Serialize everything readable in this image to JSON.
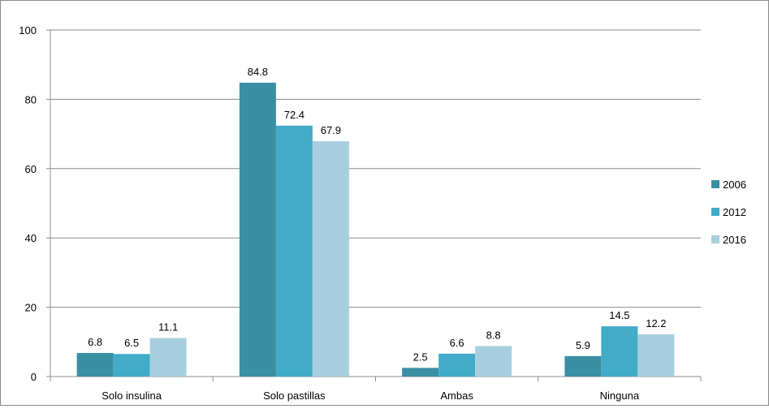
{
  "chart_data": {
    "type": "bar",
    "title": "",
    "xlabel": "",
    "ylabel": "",
    "ylim": [
      0,
      100
    ],
    "yticks": [
      0,
      20,
      40,
      60,
      80,
      100
    ],
    "grid": true,
    "legend_position": "right",
    "categories": [
      "Solo insulina",
      "Solo pastillas",
      "Ambas",
      "Ninguna"
    ],
    "series": [
      {
        "name": "2006",
        "color": "#3a8fa3",
        "values": [
          6.8,
          84.8,
          2.5,
          5.9
        ]
      },
      {
        "name": "2012",
        "color": "#41abc8",
        "values": [
          6.5,
          72.4,
          6.6,
          14.5
        ]
      },
      {
        "name": "2016",
        "color": "#a8cfdf",
        "values": [
          11.1,
          67.9,
          8.8,
          12.2
        ]
      }
    ]
  }
}
